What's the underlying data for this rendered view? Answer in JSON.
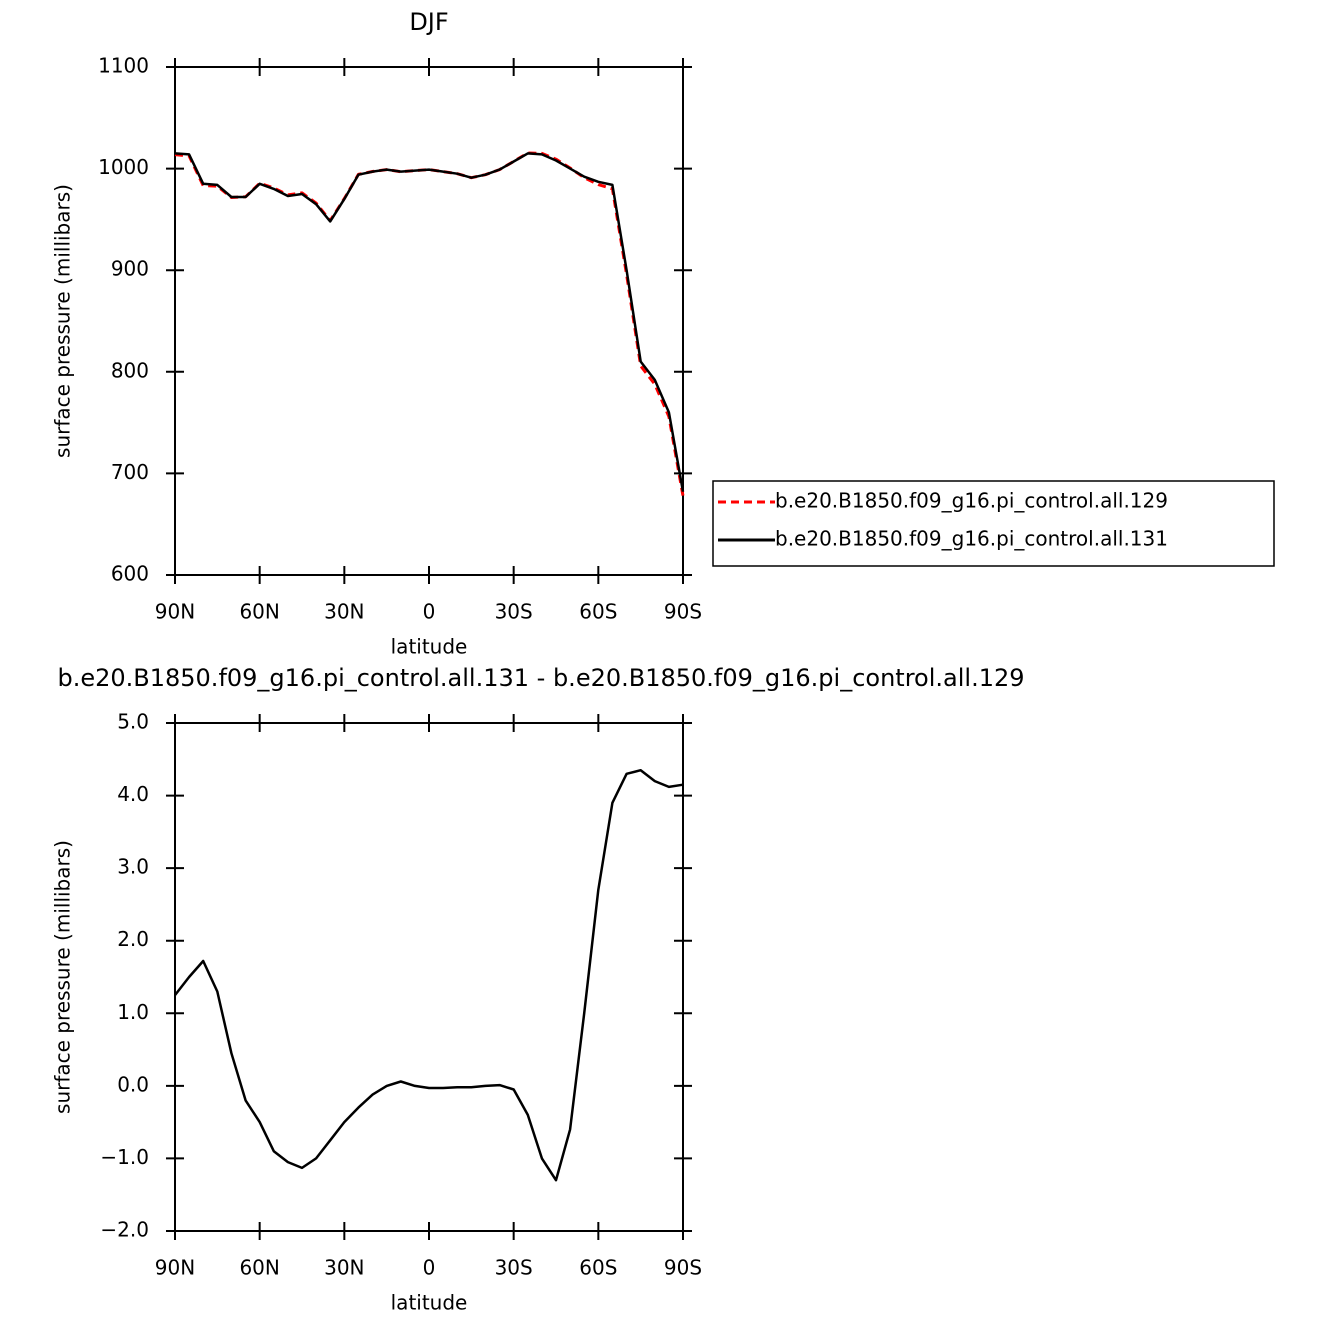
{
  "chart_data": [
    {
      "type": "line",
      "title": "DJF",
      "xlabel": "latitude",
      "ylabel": "surface pressure (millibars)",
      "x": [
        90,
        85,
        80,
        75,
        70,
        65,
        60,
        55,
        50,
        45,
        40,
        35,
        30,
        25,
        20,
        15,
        10,
        5,
        0,
        -5,
        -10,
        -15,
        -20,
        -25,
        -30,
        -35,
        -40,
        -45,
        -50,
        -55,
        -60,
        -65,
        -70,
        -75,
        -80,
        -85,
        -90
      ],
      "series": [
        {
          "name": "b.e20.B1850.f09_g16.pi_control.all.129",
          "color": "#ff0000",
          "style": "dashed",
          "values": [
            1013.8,
            1012.5,
            983.3,
            982.7,
            971.6,
            972.2,
            985.5,
            980.9,
            974.1,
            976.1,
            966,
            948.8,
            970.5,
            994.3,
            997.1,
            999,
            996.9,
            998,
            999,
            997,
            995,
            991,
            994,
            999,
            1007.1,
            1015.4,
            1015,
            1009.3,
            1000.6,
            991,
            984.3,
            980.1,
            895.7,
            805.7,
            787.8,
            755.9,
            677.9
          ]
        },
        {
          "name": "b.e20.B1850.f09_g16.pi_control.all.131",
          "color": "#000000",
          "style": "solid",
          "values": [
            1015,
            1014,
            985,
            984,
            972,
            972,
            985,
            980,
            973,
            975,
            965,
            948,
            970,
            994,
            997,
            999,
            997,
            998,
            999,
            997,
            995,
            991,
            994,
            999,
            1007,
            1015,
            1014,
            1008,
            1000,
            992,
            987,
            984,
            900,
            810,
            792,
            760,
            682
          ]
        }
      ],
      "xlim": [
        90,
        -90
      ],
      "xticks": [
        {
          "value": 90,
          "label": "90N"
        },
        {
          "value": 60,
          "label": "60N"
        },
        {
          "value": 30,
          "label": "30N"
        },
        0,
        {
          "value": -30,
          "label": "30S"
        },
        {
          "value": -60,
          "label": "60S"
        },
        {
          "value": -90,
          "label": "90S"
        }
      ],
      "ylim": [
        600,
        1100
      ],
      "yticks": [
        600,
        700,
        800,
        900,
        1000,
        1100
      ],
      "legend": "right"
    },
    {
      "type": "line",
      "title": "b.e20.B1850.f09_g16.pi_control.all.131 - b.e20.B1850.f09_g16.pi_control.all.129",
      "xlabel": "latitude",
      "ylabel": "surface pressure (millibars)",
      "x": [
        90,
        85,
        80,
        75,
        70,
        65,
        60,
        55,
        50,
        45,
        40,
        35,
        30,
        25,
        20,
        15,
        10,
        5,
        0,
        -5,
        -10,
        -15,
        -20,
        -25,
        -30,
        -35,
        -40,
        -45,
        -50,
        -55,
        -60,
        -65,
        -70,
        -75,
        -80,
        -85,
        -90
      ],
      "series": [
        {
          "color": "#000000",
          "style": "solid",
          "values": [
            1.25,
            1.5,
            1.72,
            1.3,
            0.45,
            -0.2,
            -0.5,
            -0.9,
            -1.05,
            -1.13,
            -1.0,
            -0.75,
            -0.5,
            -0.3,
            -0.12,
            0.0,
            0.06,
            0.0,
            -0.03,
            -0.03,
            -0.02,
            -0.02,
            0.0,
            0.01,
            -0.05,
            -0.4,
            -1.0,
            -1.3,
            -0.6,
            1.0,
            2.7,
            3.9,
            4.3,
            4.35,
            4.2,
            4.12,
            4.15
          ]
        }
      ],
      "xlim": [
        90,
        -90
      ],
      "xticks": [
        {
          "value": 90,
          "label": "90N"
        },
        {
          "value": 60,
          "label": "60N"
        },
        {
          "value": 30,
          "label": "30N"
        },
        0,
        {
          "value": -30,
          "label": "30S"
        },
        {
          "value": -60,
          "label": "60S"
        },
        {
          "value": -90,
          "label": "90S"
        }
      ],
      "ylim": [
        -2,
        5
      ],
      "yticks": [
        {
          "value": -2,
          "label": "−2.0"
        },
        {
          "value": -1,
          "label": "−1.0"
        },
        {
          "value": 0,
          "label": "0.0"
        },
        {
          "value": 1,
          "label": "1.0"
        },
        {
          "value": 2,
          "label": "2.0"
        },
        {
          "value": 3,
          "label": "3.0"
        },
        {
          "value": 4,
          "label": "4.0"
        },
        {
          "value": 5,
          "label": "5.0"
        }
      ]
    }
  ]
}
